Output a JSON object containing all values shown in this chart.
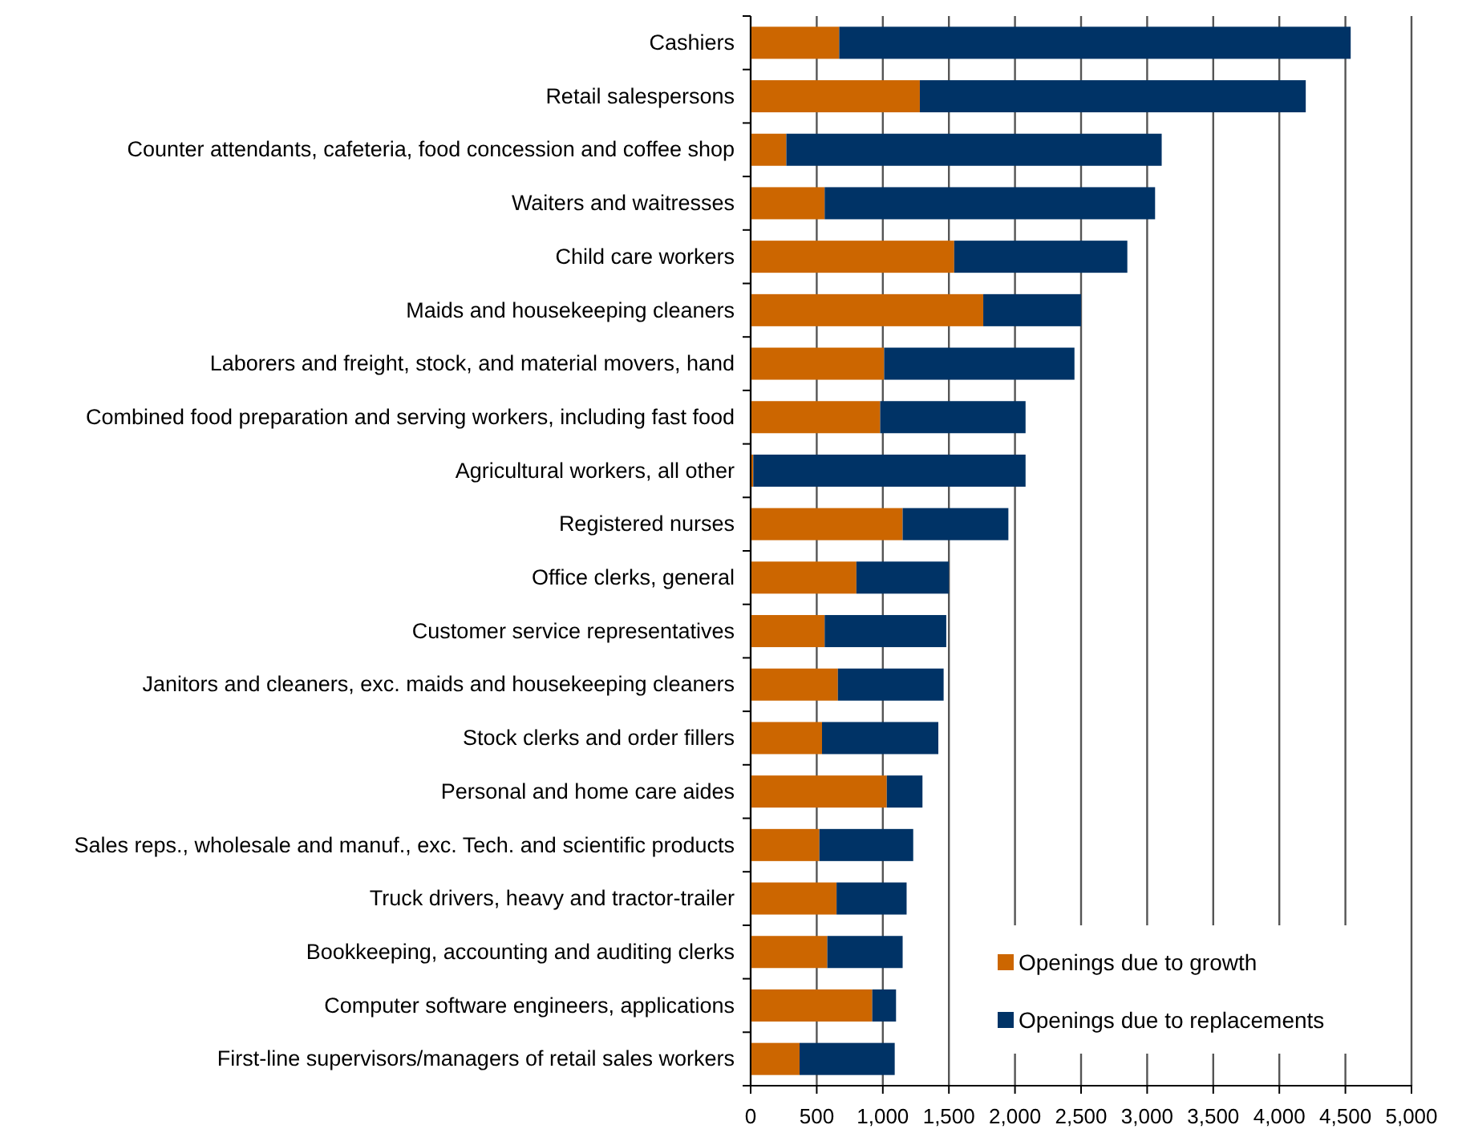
{
  "chart_data": {
    "type": "bar",
    "orientation": "horizontal",
    "stacked": true,
    "categories": [
      "Cashiers",
      "Retail salespersons",
      "Counter attendants, cafeteria, food concession and coffee shop",
      "Waiters and waitresses",
      "Child care workers",
      "Maids and housekeeping cleaners",
      "Laborers and freight, stock, and material movers, hand",
      "Combined food preparation and serving workers, including fast food",
      "Agricultural workers, all other",
      "Registered nurses",
      "Office clerks, general",
      "Customer service representatives",
      "Janitors and cleaners, exc. maids and housekeeping cleaners",
      "Stock clerks and order fillers",
      "Personal and home care aides",
      "Sales reps., wholesale and manuf., exc. Tech. and scientific products",
      "Truck drivers, heavy and tractor-trailer",
      "Bookkeeping, accounting and auditing clerks",
      "Computer software engineers, applications",
      "First-line supervisors/managers of retail sales workers"
    ],
    "series": [
      {
        "name": "Openings due to growth",
        "color": "#cc6600",
        "values": [
          670,
          1280,
          270,
          560,
          1540,
          1760,
          1010,
          980,
          20,
          1150,
          800,
          560,
          660,
          540,
          1030,
          520,
          650,
          580,
          920,
          370
        ]
      },
      {
        "name": "Openings due to replacements",
        "color": "#003366",
        "values": [
          3870,
          2920,
          2840,
          2500,
          1310,
          740,
          1440,
          1100,
          2060,
          800,
          700,
          920,
          800,
          880,
          270,
          710,
          530,
          570,
          180,
          720
        ]
      }
    ],
    "xlim": [
      0,
      5000
    ],
    "xticks": [
      0,
      {
        "value": 500,
        "label": "500"
      },
      {
        "value": 1000,
        "label": "1,000"
      },
      {
        "value": 1500,
        "label": "1,500"
      },
      {
        "value": 2000,
        "label": "2,000"
      },
      {
        "value": 2500,
        "label": "2,500"
      },
      {
        "value": 3000,
        "label": "3,000"
      },
      {
        "value": 3500,
        "label": "3,500"
      },
      {
        "value": 4000,
        "label": "4,000"
      },
      {
        "value": 4500,
        "label": "4,500"
      },
      {
        "value": 5000,
        "label": "5,000"
      }
    ],
    "grid": "x",
    "legend": "bottom right"
  }
}
